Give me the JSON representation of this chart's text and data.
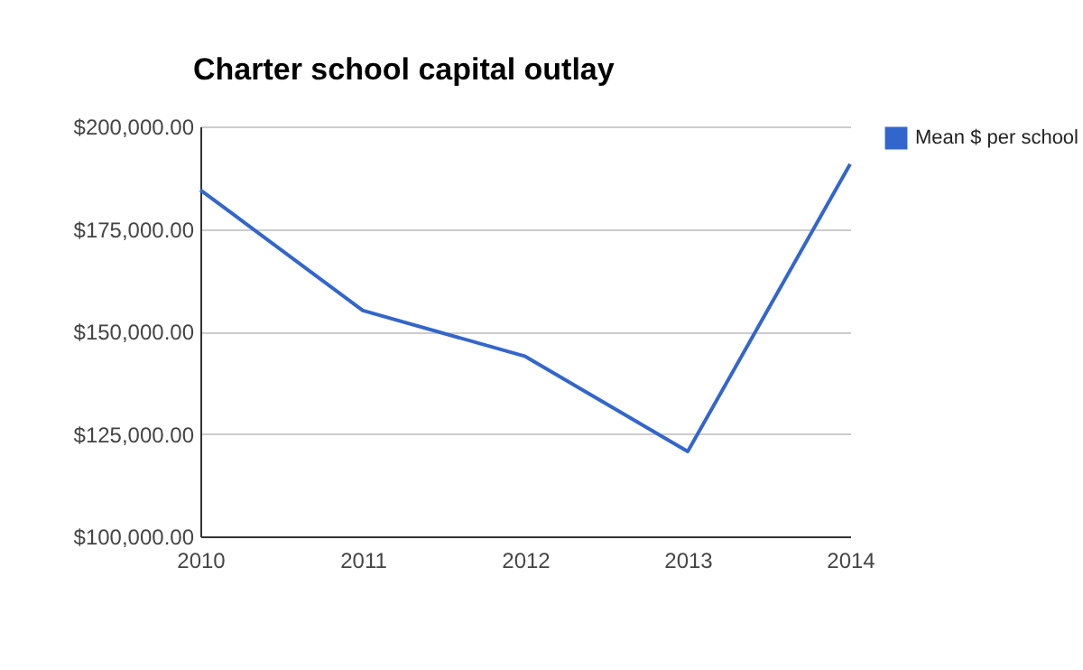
{
  "chart_data": {
    "type": "line",
    "title": "Charter school capital outlay",
    "x": [
      2010,
      2011,
      2012,
      2013,
      2014
    ],
    "series": [
      {
        "name": "Mean $ per school",
        "color": "#3366cc",
        "values": [
          184500,
          155100,
          143900,
          120700,
          190800
        ]
      }
    ],
    "xlim": [
      2010,
      2014
    ],
    "xticks": [
      2010,
      2011,
      2012,
      2013,
      2014
    ],
    "ylim": [
      100000,
      200000
    ],
    "yticks": [
      {
        "value": 100000,
        "label": "$100,000.00"
      },
      {
        "value": 125000,
        "label": "$125,000.00"
      },
      {
        "value": 150000,
        "label": "$150,000.00"
      },
      {
        "value": 175000,
        "label": "$175,000.00"
      },
      {
        "value": 200000,
        "label": "$200,000.00"
      }
    ],
    "grid": "y",
    "legend": "top right",
    "marker": "none",
    "line_style": "solid"
  }
}
